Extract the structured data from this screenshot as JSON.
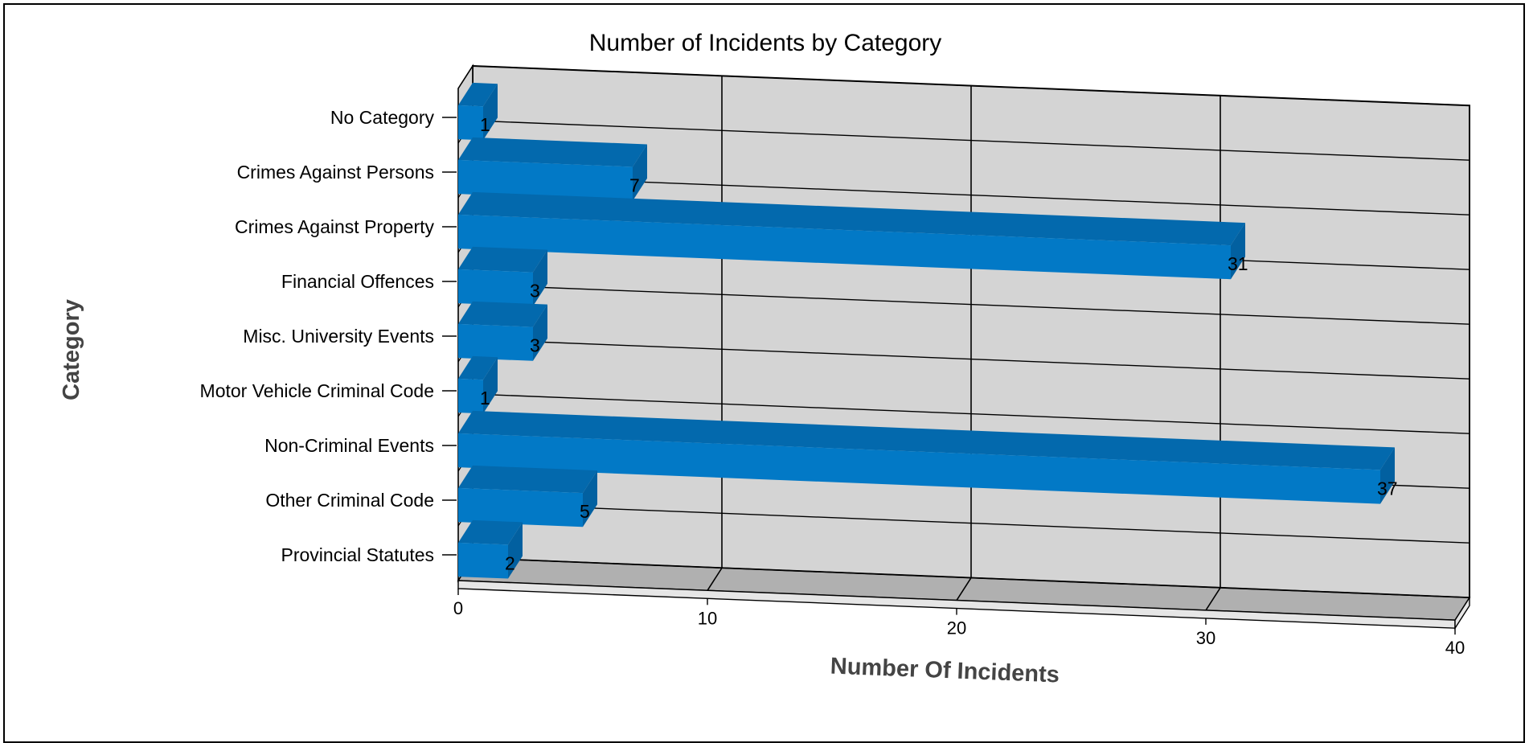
{
  "chart_data": {
    "type": "bar",
    "orientation": "horizontal",
    "style": "3d",
    "title": "Number of Incidents by Category",
    "xlabel": "Number Of Incidents",
    "ylabel": "Category",
    "categories": [
      "No Category",
      "Crimes Against Persons",
      "Crimes Against Property",
      "Financial Offences",
      "Misc. University Events",
      "Motor Vehicle Criminal Code",
      "Non-Criminal Events",
      "Other Criminal Code",
      "Provincial Statutes"
    ],
    "values": [
      1,
      7,
      31,
      3,
      3,
      1,
      37,
      5,
      2
    ],
    "xlim": [
      0,
      40
    ],
    "xticks": [
      0,
      10,
      20,
      30,
      40
    ],
    "grid": true,
    "legend": "none",
    "colors": {
      "bar_front": "#0279c6",
      "bar_top": "#0369ad",
      "bar_side": "#0260a0",
      "wall": "#d4d4d4",
      "floor": "#b0b0b0"
    }
  }
}
